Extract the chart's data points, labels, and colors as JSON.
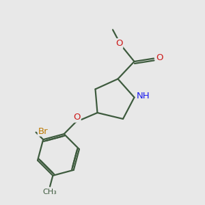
{
  "bg_color": "#e8e8e8",
  "bond_color": "#3d5a3d",
  "bond_width": 1.6,
  "atom_colors": {
    "N": "#1a1aee",
    "O": "#cc1a1a",
    "Br": "#bb7700",
    "C": "#3d5a3d",
    "H": "#3d5a3d"
  },
  "fig_size": [
    3.0,
    3.0
  ],
  "dpi": 100,
  "font_size": 9.5
}
